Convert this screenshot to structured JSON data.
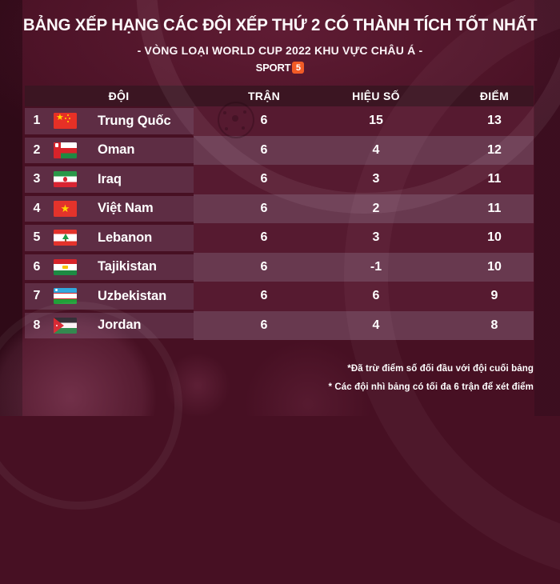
{
  "page": {
    "background_color": "#471023",
    "header_bar_color": "#3b1522",
    "row_dark_color": "#561a30",
    "row_light_color": "#68394f",
    "team_cell_color": "#5e2d44"
  },
  "header": {
    "title": "BẢNG XẾP HẠNG CÁC ĐỘI XẾP THỨ 2 CÓ THÀNH TÍCH TỐT NHẤT",
    "subtitle": "- VÒNG LOẠI WORLD CUP 2022 KHU VỰC CHÂU Á -",
    "logo_text": "SPORT",
    "logo_badge": "5",
    "logo_badge_color": "#f15b26"
  },
  "table": {
    "columns": [
      "ĐỘI",
      "TRẬN",
      "HIỆU SỐ",
      "ĐIỂM"
    ],
    "rows": [
      {
        "rank": "1",
        "flag": "china",
        "team": "Trung Quốc",
        "matches": "6",
        "goal_diff": "15",
        "points": "13"
      },
      {
        "rank": "2",
        "flag": "oman",
        "team": "Oman",
        "matches": "6",
        "goal_diff": "4",
        "points": "12"
      },
      {
        "rank": "3",
        "flag": "iraq",
        "team": "Iraq",
        "matches": "6",
        "goal_diff": "3",
        "points": "11"
      },
      {
        "rank": "4",
        "flag": "vietnam",
        "team": "Việt Nam",
        "matches": "6",
        "goal_diff": "2",
        "points": "11"
      },
      {
        "rank": "5",
        "flag": "lebanon",
        "team": "Lebanon",
        "matches": "6",
        "goal_diff": "3",
        "points": "10"
      },
      {
        "rank": "6",
        "flag": "tajikistan",
        "team": "Tajikistan",
        "matches": "6",
        "goal_diff": "-1",
        "points": "10"
      },
      {
        "rank": "7",
        "flag": "uzbekistan",
        "team": "Uzbekistan",
        "matches": "6",
        "goal_diff": "6",
        "points": "9"
      },
      {
        "rank": "8",
        "flag": "jordan",
        "team": "Jordan",
        "matches": "6",
        "goal_diff": "4",
        "points": "8"
      }
    ]
  },
  "footnotes": {
    "line1": "*Đã trừ điểm số đối đầu với đội cuối bảng",
    "line2": "* Các đội nhì bảng có tối đa 6 trận để xét điểm"
  },
  "chart_data": {
    "type": "table",
    "title": "BẢNG XẾP HẠNG CÁC ĐỘI XẾP THỨ 2 CÓ THÀNH TÍCH TỐT NHẤT",
    "subtitle": "- VÒNG LOẠI WORLD CUP 2022 KHU VỰC CHÂU Á -",
    "columns": [
      "",
      "ĐỘI",
      "TRẬN",
      "HIỆU SỐ",
      "ĐIỂM"
    ],
    "rows": [
      [
        1,
        "Trung Quốc",
        6,
        15,
        13
      ],
      [
        2,
        "Oman",
        6,
        4,
        12
      ],
      [
        3,
        "Iraq",
        6,
        3,
        11
      ],
      [
        4,
        "Việt Nam",
        6,
        2,
        11
      ],
      [
        5,
        "Lebanon",
        6,
        3,
        10
      ],
      [
        6,
        "Tajikistan",
        6,
        -1,
        10
      ],
      [
        7,
        "Uzbekistan",
        6,
        6,
        9
      ],
      [
        8,
        "Jordan",
        6,
        4,
        8
      ]
    ]
  }
}
